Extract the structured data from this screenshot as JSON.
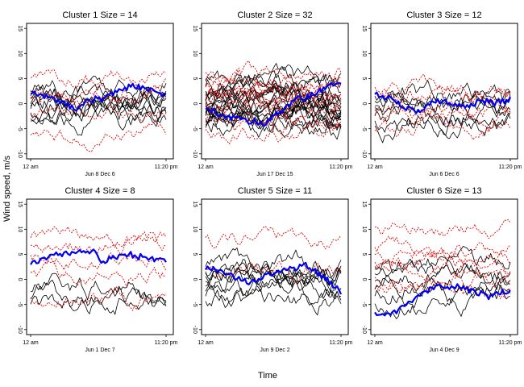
{
  "figure": {
    "xlabel": "Time",
    "ylabel": "Wind speed, m/s",
    "colors": {
      "black": "#000000",
      "red": "#dd0000",
      "blue": "#0000ee"
    }
  },
  "chart_data": [
    {
      "type": "line",
      "title": "Cluster 1 Size = 14",
      "date_label": "Jun 8 Dec 6",
      "x_start_label": "12 am",
      "x_end_label": "11:20 pm",
      "ylim": [
        -11,
        16
      ],
      "yticks": [
        "15",
        "10",
        "5",
        "0",
        "-5",
        "-10"
      ],
      "n_black": 9,
      "n_red": 5,
      "black_levels": [
        3,
        1.5,
        0.5,
        -0.5,
        -1.5,
        -2.5,
        -3,
        0,
        2
      ],
      "red_levels": [
        5,
        2.5,
        1,
        -2,
        -6.5
      ],
      "mean": [
        2,
        2,
        1.5,
        1,
        0.5,
        0,
        -1,
        -0.5,
        0.5,
        1,
        1,
        1.5,
        2.5,
        3,
        3.5,
        3.5,
        3,
        2.5,
        2,
        2
      ]
    },
    {
      "type": "line",
      "title": "Cluster 2 Size = 32",
      "date_label": "Jun 17 Dec 15",
      "x_start_label": "12 am",
      "x_end_label": "11:20 pm",
      "ylim": [
        -11,
        16
      ],
      "yticks": [
        "15",
        "10",
        "5",
        "0",
        "-5",
        "-10"
      ],
      "n_black": 20,
      "n_red": 12,
      "black_levels": [
        5,
        4,
        3,
        2.5,
        2,
        1.5,
        1,
        0.5,
        0,
        -0.5,
        -1,
        -1.5,
        -2,
        -2.5,
        -3,
        -3.5,
        -4,
        -4.5,
        1.2,
        -1.2
      ],
      "red_levels": [
        6,
        4.5,
        3.5,
        3,
        2,
        1.5,
        0.8,
        0,
        -1,
        -2.5,
        -4,
        -5.5
      ],
      "mean": [
        -1,
        -1.5,
        -2,
        -2.5,
        -3,
        -3,
        -3.5,
        -3.5,
        -4,
        -3.5,
        -2,
        -1,
        0,
        1,
        1,
        2,
        2.5,
        3,
        4,
        4.5
      ]
    },
    {
      "type": "line",
      "title": "Cluster 3 Size = 12",
      "date_label": "Jun 6 Dec 6",
      "x_start_label": "12 am",
      "x_end_label": "11:20 pm",
      "ylim": [
        -11,
        16
      ],
      "yticks": [
        "15",
        "10",
        "5",
        "0",
        "-5",
        "-10"
      ],
      "n_black": 7,
      "n_red": 5,
      "black_levels": [
        2,
        1,
        0,
        -1,
        -2,
        -3,
        -4
      ],
      "red_levels": [
        3,
        1.5,
        -1,
        -2.5,
        -5.5
      ],
      "mean": [
        2,
        1.5,
        1,
        0.5,
        -0.5,
        -1,
        -1.5,
        -1,
        0,
        0.5,
        0.5,
        0,
        -0.5,
        -0.5,
        0,
        0.5,
        0.5,
        0,
        0.5,
        1
      ]
    },
    {
      "type": "line",
      "title": "Cluster 4 Size = 8",
      "date_label": "Jun 1 Dec 7",
      "x_start_label": "12 am",
      "x_end_label": "11:20 pm",
      "ylim": [
        -11,
        16
      ],
      "yticks": [
        "15",
        "10",
        "5",
        "0",
        "-5",
        "-10"
      ],
      "n_black": 3,
      "n_red": 5,
      "black_levels": [
        -2,
        -3.5,
        -4.5
      ],
      "red_levels": [
        8,
        6.5,
        4.5,
        1,
        -4
      ],
      "mean": [
        3,
        3.5,
        4,
        4.5,
        5,
        5,
        5.5,
        5.5,
        5.5,
        5.5,
        3,
        4,
        4.5,
        5,
        5,
        4.5,
        4.5,
        4,
        4,
        3.5
      ]
    },
    {
      "type": "line",
      "title": "Cluster 5 Size = 11",
      "date_label": "Jun 9 Dec 2",
      "x_start_label": "12 am",
      "x_end_label": "11:20 pm",
      "ylim": [
        -11,
        16
      ],
      "yticks": [
        "15",
        "10",
        "5",
        "0",
        "-5",
        "-10"
      ],
      "n_black": 9,
      "n_red": 2,
      "black_levels": [
        3,
        2,
        1,
        0,
        -1,
        -2,
        -3,
        -4,
        1.5
      ],
      "red_levels": [
        8,
        2
      ],
      "mean": [
        2,
        2,
        1.5,
        1,
        0.5,
        0,
        -0.5,
        0,
        0.5,
        1,
        1.5,
        2,
        2,
        2.5,
        3,
        2,
        1,
        0,
        -1.5,
        -2.5
      ]
    },
    {
      "type": "line",
      "title": "Cluster 6 Size = 13",
      "date_label": "Jun 4 Dec 9",
      "x_start_label": "12 am",
      "x_end_label": "11:20 pm",
      "ylim": [
        -11,
        16
      ],
      "yticks": [
        "15",
        "10",
        "5",
        "0",
        "-5",
        "-10"
      ],
      "n_black": 6,
      "n_red": 7,
      "black_levels": [
        3,
        1.5,
        0,
        -1.5,
        -3,
        -4.5
      ],
      "red_levels": [
        10,
        6,
        4.5,
        3,
        1.5,
        0,
        -2.5
      ],
      "mean": [
        -6.5,
        -7,
        -7,
        -6.5,
        -5.5,
        -4.5,
        -3.5,
        -2.5,
        -2,
        -1.5,
        -1.5,
        -1.5,
        -1.5,
        -2,
        -2.5,
        -3,
        -3.5,
        -3,
        -2.5,
        -2.5
      ]
    }
  ]
}
